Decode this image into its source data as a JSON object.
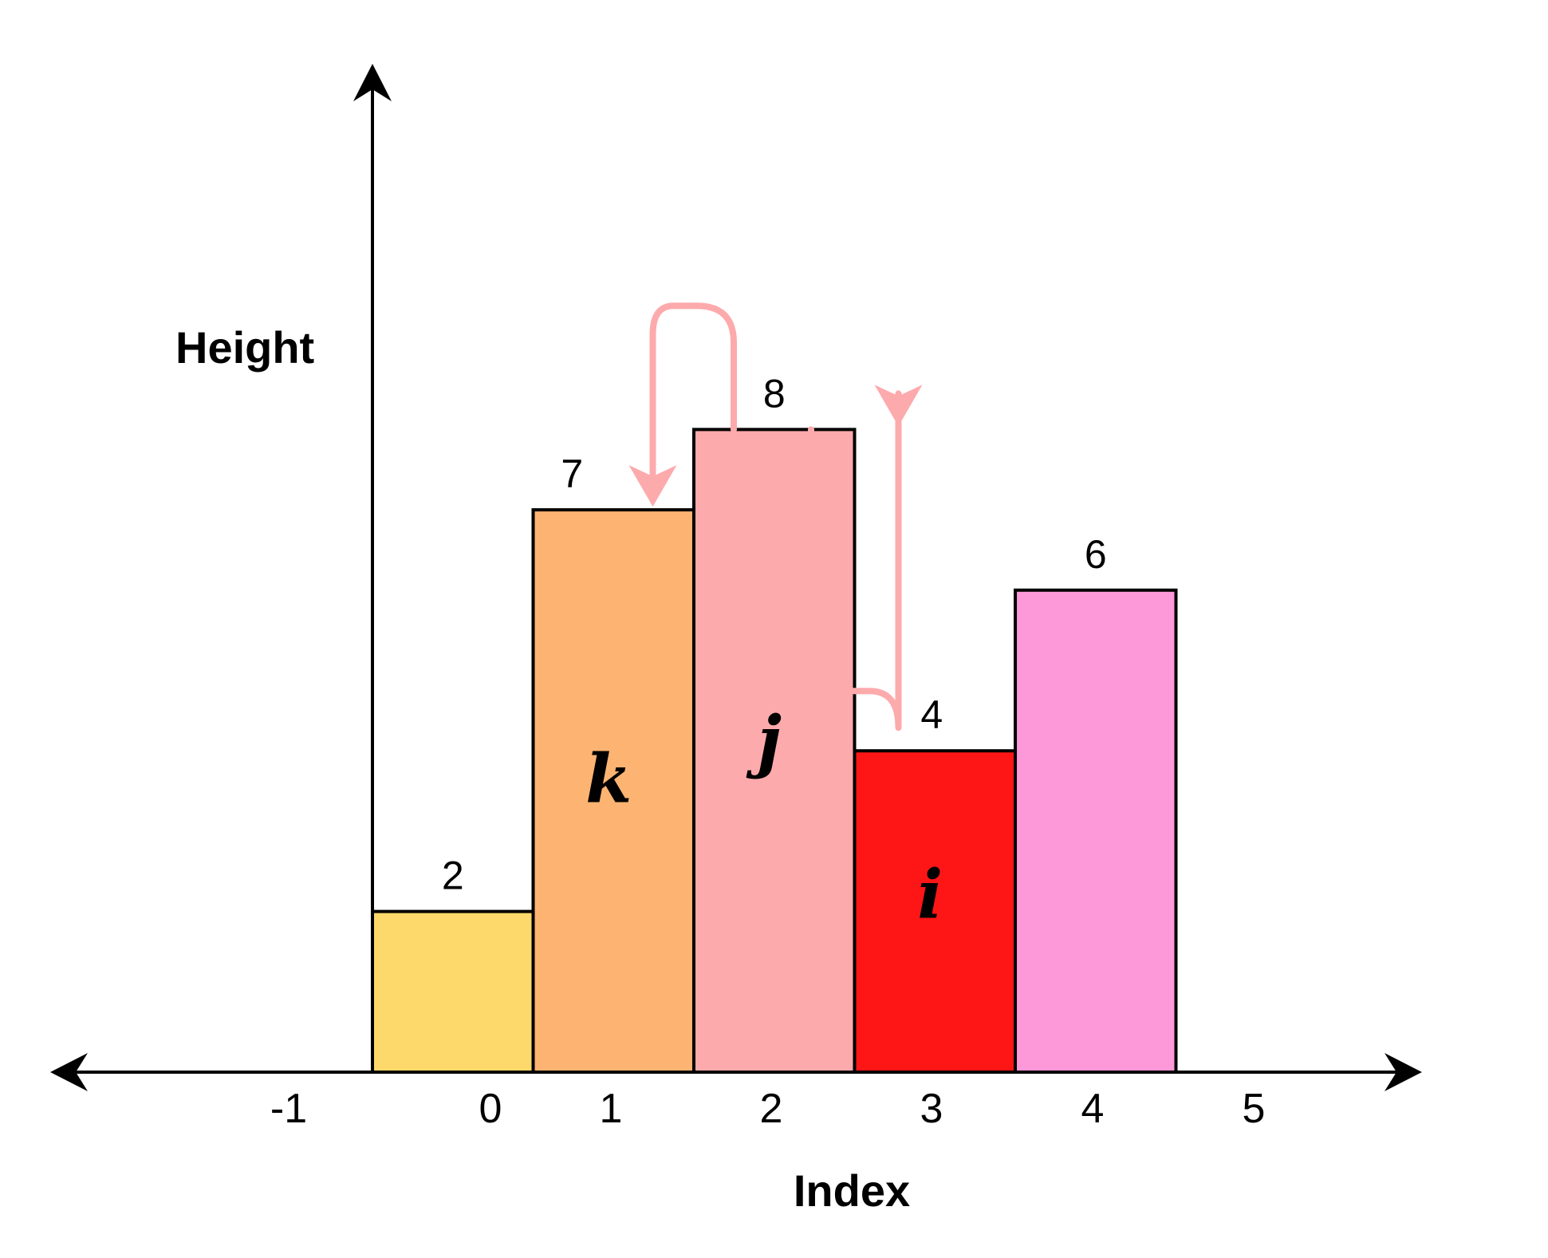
{
  "chart_data": {
    "type": "bar",
    "categories": [
      "0",
      "1",
      "2",
      "3",
      "4"
    ],
    "values": [
      2,
      7,
      8,
      4,
      6
    ],
    "bar_colors": [
      "#FDD96B",
      "#FDB472",
      "#FDAAAC",
      "#FE1616",
      "#FD98D9"
    ],
    "bar_letters": [
      "",
      "k",
      "j",
      "i",
      ""
    ],
    "x_ticks": [
      "-1",
      "0",
      "1",
      "2",
      "3",
      "4",
      "5"
    ],
    "xlabel": "Index",
    "ylabel": "Height",
    "ylim": [
      0,
      12
    ],
    "grid": false,
    "legend": "none",
    "arrows": [
      {
        "from": "2",
        "to": "1"
      },
      {
        "from": "3",
        "to": "2"
      }
    ],
    "arrow_color": "#FDAAAC"
  }
}
